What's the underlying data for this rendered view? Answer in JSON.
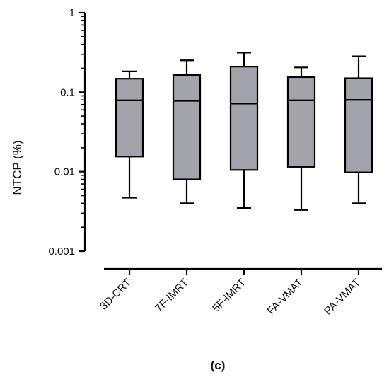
{
  "chart_data": {
    "type": "box",
    "ylabel": "NTCP (%)",
    "xlabel": "",
    "y_scale": "log",
    "ylim": [
      0.001,
      1
    ],
    "y_ticks": [
      {
        "value": 1,
        "label": "1"
      },
      {
        "value": 0.1,
        "label": "0.1"
      },
      {
        "value": 0.01,
        "label": "0.01"
      },
      {
        "value": 0.001,
        "label": "0.001"
      }
    ],
    "categories": [
      "3D-CRT",
      "7F-IMRT",
      "5F-IMRT",
      "FA-VMAT",
      "PA-VMAT"
    ],
    "boxes": [
      {
        "category": "3D-CRT",
        "min": 0.0047,
        "q1": 0.0155,
        "median": 0.079,
        "q3": 0.148,
        "max": 0.183
      },
      {
        "category": "7F-IMRT",
        "min": 0.004,
        "q1": 0.008,
        "median": 0.078,
        "q3": 0.165,
        "max": 0.252
      },
      {
        "category": "5F-IMRT",
        "min": 0.0035,
        "q1": 0.0105,
        "median": 0.072,
        "q3": 0.21,
        "max": 0.315
      },
      {
        "category": "FA-VMAT",
        "min": 0.0033,
        "q1": 0.0115,
        "median": 0.079,
        "q3": 0.155,
        "max": 0.205
      },
      {
        "category": "PA-VMAT",
        "min": 0.004,
        "q1": 0.0098,
        "median": 0.08,
        "q3": 0.15,
        "max": 0.283
      }
    ],
    "box_color": "#a3a3ab",
    "line_color": "#000000",
    "grid": false,
    "panel_label": "(c)"
  }
}
